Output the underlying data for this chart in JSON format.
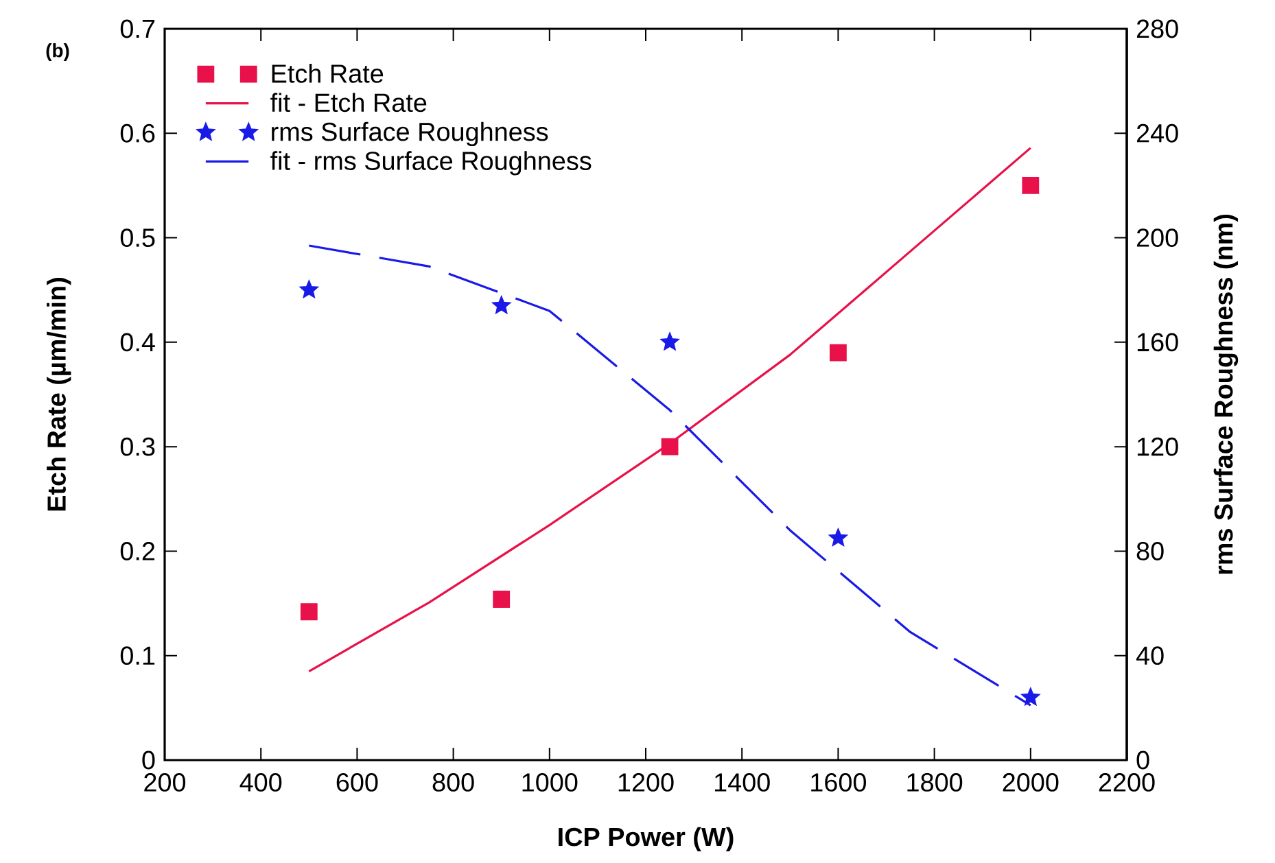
{
  "chart_data": {
    "type": "scatter",
    "xlabel": "ICP Power (W)",
    "ylabel": "Etch Rate (µm/min)",
    "y2label": "rms Surface Roughness (nm)",
    "annotations": [
      "(b)"
    ],
    "xlim": [
      200,
      2200
    ],
    "xticks": [
      200,
      400,
      600,
      800,
      1000,
      1200,
      1400,
      1600,
      1800,
      2000,
      2200
    ],
    "ylim": [
      0,
      0.7
    ],
    "yticks": [
      0,
      0.1,
      0.2,
      0.3,
      0.4,
      0.5,
      0.6,
      0.7
    ],
    "y2lim": [
      0,
      280
    ],
    "y2ticks": [
      0,
      40,
      80,
      120,
      160,
      200,
      240,
      280
    ],
    "legend": "top left",
    "grid": false,
    "series": [
      {
        "name": "Etch Rate",
        "marker": "square",
        "color": "#e8114a",
        "x": [
          500,
          900,
          1250,
          1600,
          2000
        ],
        "values": [
          0.142,
          0.154,
          0.3,
          0.39,
          0.55
        ]
      },
      {
        "name": "fit - Etch Rate",
        "type": "line",
        "marker": "none",
        "line_style": "solid",
        "color": "#e8114a",
        "x": [
          500,
          750,
          1000,
          1250,
          1500,
          1750,
          2000
        ],
        "values": [
          0.085,
          0.151,
          0.225,
          0.303,
          0.388,
          0.487,
          0.586
        ]
      },
      {
        "name": "rms Surface Roughness",
        "marker": "star",
        "axis": "y2",
        "color": "#1a1ae8",
        "x": [
          500,
          900,
          1250,
          1600,
          2000
        ],
        "values": [
          180,
          174,
          160,
          85,
          24
        ]
      },
      {
        "name": "fit - rms Surface Roughness",
        "type": "line",
        "marker": "none",
        "line_style": "dashed",
        "axis": "y2",
        "color": "#1a1ae8",
        "x": [
          500,
          750,
          1000,
          1250,
          1500,
          1750,
          2000
        ],
        "values": [
          197,
          189,
          172,
          134,
          88,
          49,
          21
        ]
      }
    ]
  }
}
